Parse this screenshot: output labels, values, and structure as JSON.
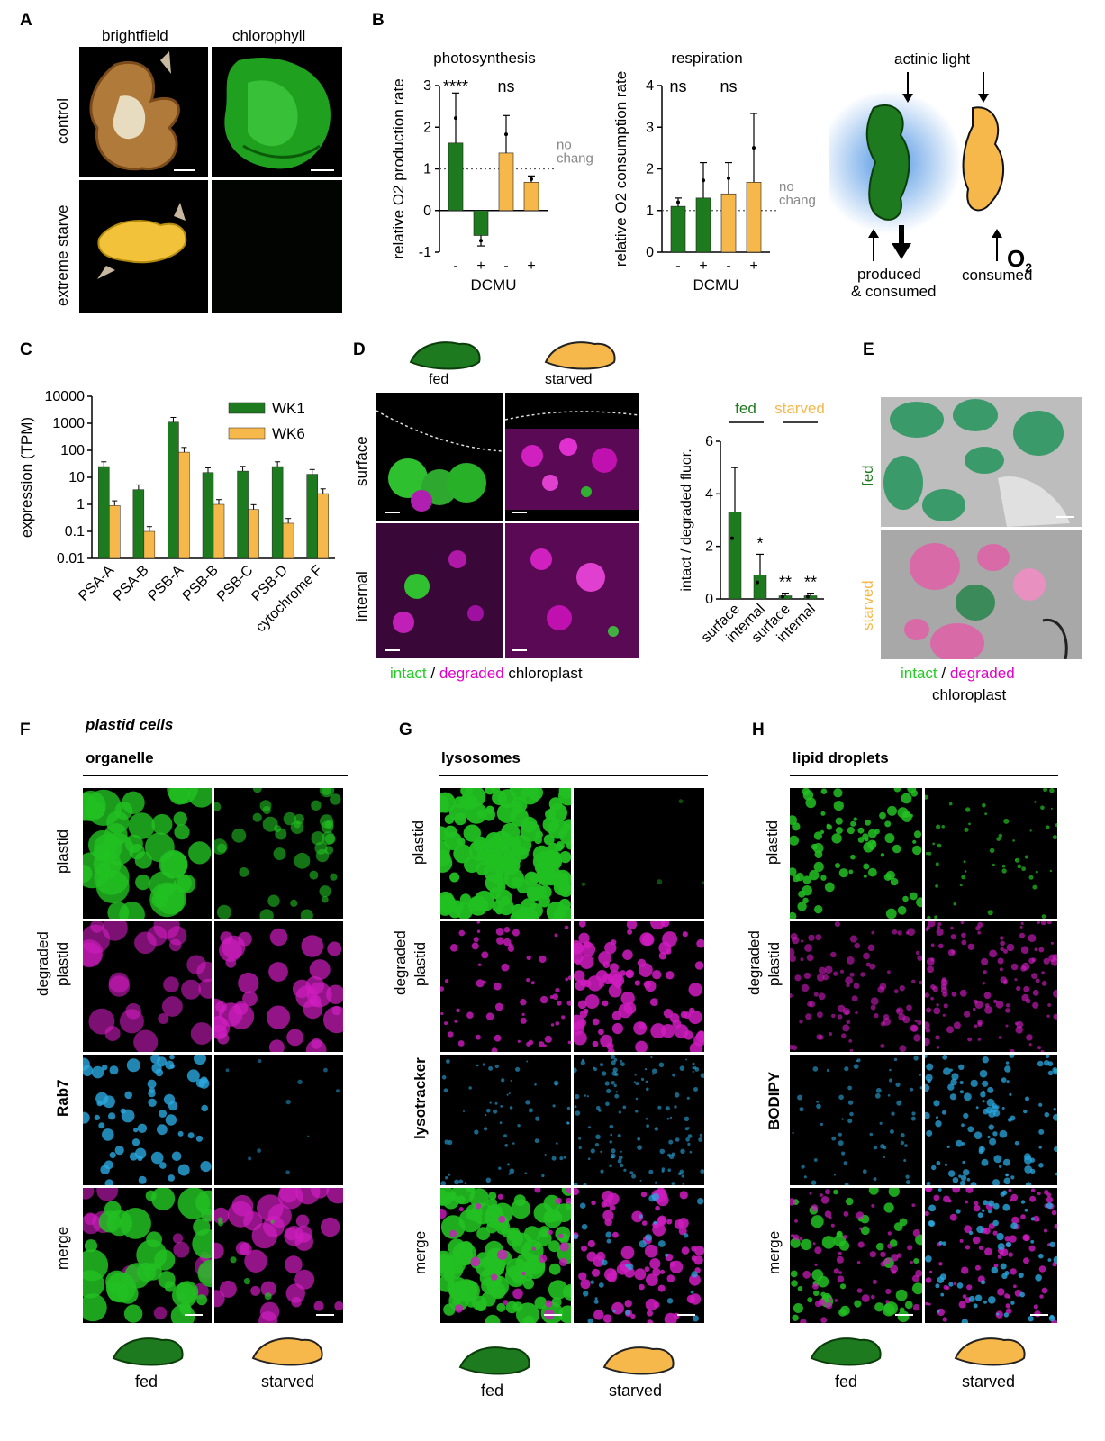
{
  "panels": {
    "A": {
      "label": "A",
      "col_labels": [
        "brightfield",
        "chlorophyll"
      ],
      "row_labels": [
        "control",
        "extreme starve"
      ]
    },
    "B": {
      "label": "B",
      "schematic": {
        "top": "actinic light",
        "o2": "O",
        "o2_sub": "2",
        "left_bottom_1": "produced",
        "left_bottom_2": "& consumed",
        "right_bottom": "consumed"
      }
    },
    "C": {
      "label": "C",
      "legend": [
        "WK1",
        "WK6"
      ]
    },
    "D": {
      "label": "D",
      "fed": "fed",
      "starved": "starved",
      "row_labels": [
        "surface",
        "internal"
      ],
      "caption_intact": "intact",
      "caption_slash": " / ",
      "caption_degraded": "degraded",
      "caption_rest": " chloroplast"
    },
    "E": {
      "label": "E",
      "row_labels": [
        "fed",
        "starved"
      ],
      "caption_intact": "intact",
      "caption_slash": " / ",
      "caption_degraded": "degraded",
      "caption_line2": "chloroplast"
    },
    "F": {
      "label": "F",
      "italic_header": "plastid cells",
      "header": "organelle",
      "row_labels": [
        "plastid",
        "degraded",
        "plastid",
        "Rab7",
        "merge"
      ],
      "fed": "fed",
      "starved": "starved"
    },
    "G": {
      "label": "G",
      "header": "lysosomes",
      "row_labels": [
        "plastid",
        "degraded",
        "plastid",
        "lysotracker",
        "merge"
      ],
      "fed": "fed",
      "starved": "starved"
    },
    "H": {
      "label": "H",
      "header": "lipid droplets",
      "row_labels": [
        "plastid",
        "degraded",
        "plastid",
        "BODIPY",
        "merge"
      ],
      "fed": "fed",
      "starved": "starved"
    }
  },
  "colors": {
    "fed_green": "#1e7a1e",
    "starved_orange": "#f6b84a",
    "intact_green": "#22cc22",
    "degraded_magenta": "#e000c8",
    "stat_gray": "#888888",
    "blue_glow": "#4a90e2"
  },
  "chart_data": [
    {
      "type": "bar",
      "title": "photosynthesis",
      "ylabel": "relative O2 production rate",
      "xlabel": "DCMU",
      "categories": [
        "-",
        "+",
        "-",
        "+"
      ],
      "values": [
        1.62,
        -0.6,
        1.38,
        0.68
      ],
      "errors": [
        1.2,
        0.25,
        0.9,
        0.15
      ],
      "bar_colors": [
        "#1e7a1e",
        "#1e7a1e",
        "#f6b84a",
        "#f6b84a"
      ],
      "ylim": [
        -1,
        3
      ],
      "yticks": [
        "-1",
        "0",
        "1",
        "2",
        "3"
      ],
      "reference_line": 1,
      "reference_label_1": "no",
      "reference_label_2": "change",
      "annotations": [
        "****",
        "ns"
      ]
    },
    {
      "type": "bar",
      "title": "respiration",
      "ylabel": "relative O2 consumption rate",
      "xlabel": "DCMU",
      "categories": [
        "-",
        "+",
        "-",
        "+"
      ],
      "values": [
        1.1,
        1.3,
        1.4,
        1.68
      ],
      "errors": [
        0.2,
        0.85,
        0.75,
        1.65
      ],
      "bar_colors": [
        "#1e7a1e",
        "#1e7a1e",
        "#f6b84a",
        "#f6b84a"
      ],
      "ylim": [
        0,
        4
      ],
      "yticks": [
        "0",
        "1",
        "2",
        "3",
        "4"
      ],
      "reference_line": 1,
      "reference_label_1": "no",
      "reference_label_2": "change",
      "annotations": [
        "ns",
        "ns"
      ]
    },
    {
      "type": "bar",
      "ylabel": "expression (TPM)",
      "scale": "log",
      "ylim": [
        0.01,
        10000
      ],
      "yticks": [
        "0.01",
        "0.1",
        "1",
        "10",
        "100",
        "1000",
        "10000"
      ],
      "categories": [
        "PSA-A",
        "PSA-B",
        "PSB-A",
        "PSB-B",
        "PSB-C",
        "PSB-D",
        "cytochrome F"
      ],
      "series": [
        {
          "name": "WK1",
          "values": [
            25,
            3.5,
            1100,
            15,
            17,
            25,
            13
          ],
          "color": "#1e7a1e"
        },
        {
          "name": "WK6",
          "values": [
            0.9,
            0.1,
            85,
            1.0,
            0.65,
            0.2,
            2.5
          ],
          "color": "#f6b84a"
        }
      ],
      "legend_position": "top-right"
    },
    {
      "type": "bar",
      "ylabel": "intact / degraded fluor.",
      "categories": [
        "surface",
        "internal",
        "surface",
        "internal"
      ],
      "group_labels": [
        "fed",
        "starved"
      ],
      "values": [
        3.3,
        0.9,
        0.12,
        0.12
      ],
      "errors": [
        1.7,
        0.8,
        0.1,
        0.1
      ],
      "bar_colors": [
        "#1e7a1e",
        "#1e7a1e",
        "#1e7a1e",
        "#1e7a1e"
      ],
      "ylim": [
        0,
        6
      ],
      "yticks": [
        "0",
        "2",
        "4",
        "6"
      ],
      "annotations": [
        "",
        "*",
        "**",
        "**"
      ]
    }
  ]
}
